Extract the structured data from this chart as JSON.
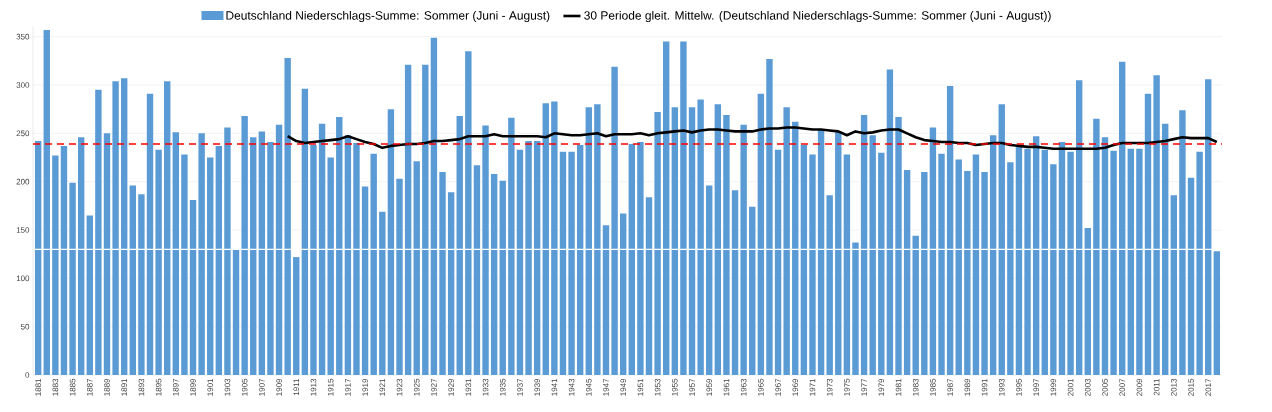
{
  "chart_data": {
    "type": "bar",
    "categories": [
      "1881",
      null,
      "1883",
      null,
      "1885",
      null,
      "1887",
      null,
      "1889",
      null,
      "1891",
      null,
      "1893",
      null,
      "1895",
      null,
      "1897",
      null,
      "1899",
      null,
      "1901",
      null,
      "1903",
      null,
      "1905",
      null,
      "1907",
      null,
      "1909",
      null,
      "1911",
      null,
      "1913",
      null,
      "1915",
      null,
      "1917",
      null,
      "1919",
      null,
      "1921",
      null,
      "1923",
      null,
      "1925",
      null,
      "1927",
      null,
      "1929",
      null,
      "1931",
      null,
      "1933",
      null,
      "1935",
      null,
      "1937",
      null,
      "1939",
      null,
      "1941",
      null,
      "1943",
      null,
      "1945",
      null,
      "1947",
      null,
      "1949",
      null,
      "1951",
      null,
      "1953",
      null,
      "1955",
      null,
      "1957",
      null,
      "1959",
      null,
      "1961",
      null,
      "1963",
      null,
      "1965",
      null,
      "1967",
      null,
      "1969",
      null,
      "1971",
      null,
      "1973",
      null,
      "1975",
      null,
      "1977",
      null,
      "1979",
      null,
      "1981",
      null,
      "1983",
      null,
      "1985",
      null,
      "1987",
      null,
      "1989",
      null,
      "1991",
      null,
      "1993",
      null,
      "1995",
      null,
      "1997",
      null,
      "1999",
      null,
      "2001",
      null,
      "2003",
      null,
      "2005",
      null,
      "2007",
      null,
      "2009",
      null,
      "2011",
      null,
      "2013",
      null,
      "2015",
      null,
      "2017",
      null
    ],
    "series": [
      {
        "name": "Deutschland Niederschlags-Summe: Sommer (Juni - August)",
        "color": "#5b9bd5",
        "values": [
          242,
          357,
          227,
          237,
          199,
          246,
          165,
          295,
          250,
          304,
          307,
          196,
          187,
          291,
          233,
          304,
          251,
          228,
          181,
          250,
          225,
          237,
          256,
          130,
          268,
          246,
          252,
          241,
          259,
          328,
          122,
          296,
          238,
          260,
          225,
          267,
          248,
          240,
          195,
          229,
          169,
          275,
          203,
          321,
          221,
          321,
          349,
          210,
          189,
          268,
          335,
          217,
          258,
          208,
          201,
          266,
          233,
          242,
          242,
          281,
          283,
          231,
          231,
          238,
          277,
          280,
          155,
          319,
          167,
          239,
          241,
          184,
          272,
          345,
          277,
          345,
          277,
          285,
          196,
          280,
          269,
          191,
          259,
          174,
          291,
          327,
          233,
          277,
          262,
          238,
          228,
          254,
          186,
          252,
          228,
          137,
          269,
          248,
          230,
          316,
          267,
          212,
          144,
          210,
          256,
          229,
          299,
          223,
          211,
          228,
          210,
          248,
          280,
          220,
          238,
          234,
          247,
          233,
          218,
          241,
          231,
          305,
          152,
          265,
          246,
          232,
          324,
          234,
          234,
          291,
          310,
          260,
          186,
          274,
          204,
          231,
          306,
          128
        ]
      },
      {
        "name": "30 Periode gleit. Mittelw. (Deutschland Niederschlags-Summe: Sommer (Juni - August))",
        "type": "line",
        "color": "#000000",
        "values": [
          null,
          null,
          null,
          null,
          null,
          null,
          null,
          null,
          null,
          null,
          null,
          null,
          null,
          null,
          null,
          null,
          null,
          null,
          null,
          null,
          null,
          null,
          null,
          null,
          null,
          null,
          null,
          null,
          null,
          247,
          242,
          240,
          241,
          242,
          243,
          244,
          247,
          244,
          241,
          239,
          235,
          237,
          238,
          239,
          239,
          240,
          242,
          242,
          243,
          244,
          247,
          247,
          247,
          249,
          247,
          247,
          247,
          247,
          247,
          246,
          250,
          249,
          248,
          248,
          249,
          250,
          247,
          249,
          249,
          249,
          250,
          248,
          250,
          251,
          252,
          253,
          251,
          253,
          254,
          254,
          253,
          252,
          252,
          252,
          254,
          255,
          255,
          256,
          256,
          255,
          254,
          254,
          253,
          252,
          248,
          252,
          250,
          251,
          253,
          254,
          254,
          250,
          246,
          243,
          242,
          241,
          241,
          240,
          240,
          238,
          239,
          240,
          240,
          238,
          237,
          236,
          236,
          235,
          234,
          234,
          234,
          234,
          234,
          234,
          235,
          238,
          240,
          240,
          240,
          240,
          241,
          242,
          244,
          246,
          245,
          245,
          245,
          241
        ]
      }
    ],
    "ylim": [
      0,
      360
    ],
    "yticks": [
      0,
      50,
      100,
      150,
      200,
      250,
      300,
      350
    ],
    "grid": "y",
    "legend": "top",
    "ref_lines": [
      {
        "axis": "y",
        "value": 239,
        "color": "#ff0000",
        "line_style": "dashed"
      },
      {
        "axis": "y",
        "value": 130,
        "color": "#ffffff",
        "line_style": "solid"
      }
    ]
  }
}
